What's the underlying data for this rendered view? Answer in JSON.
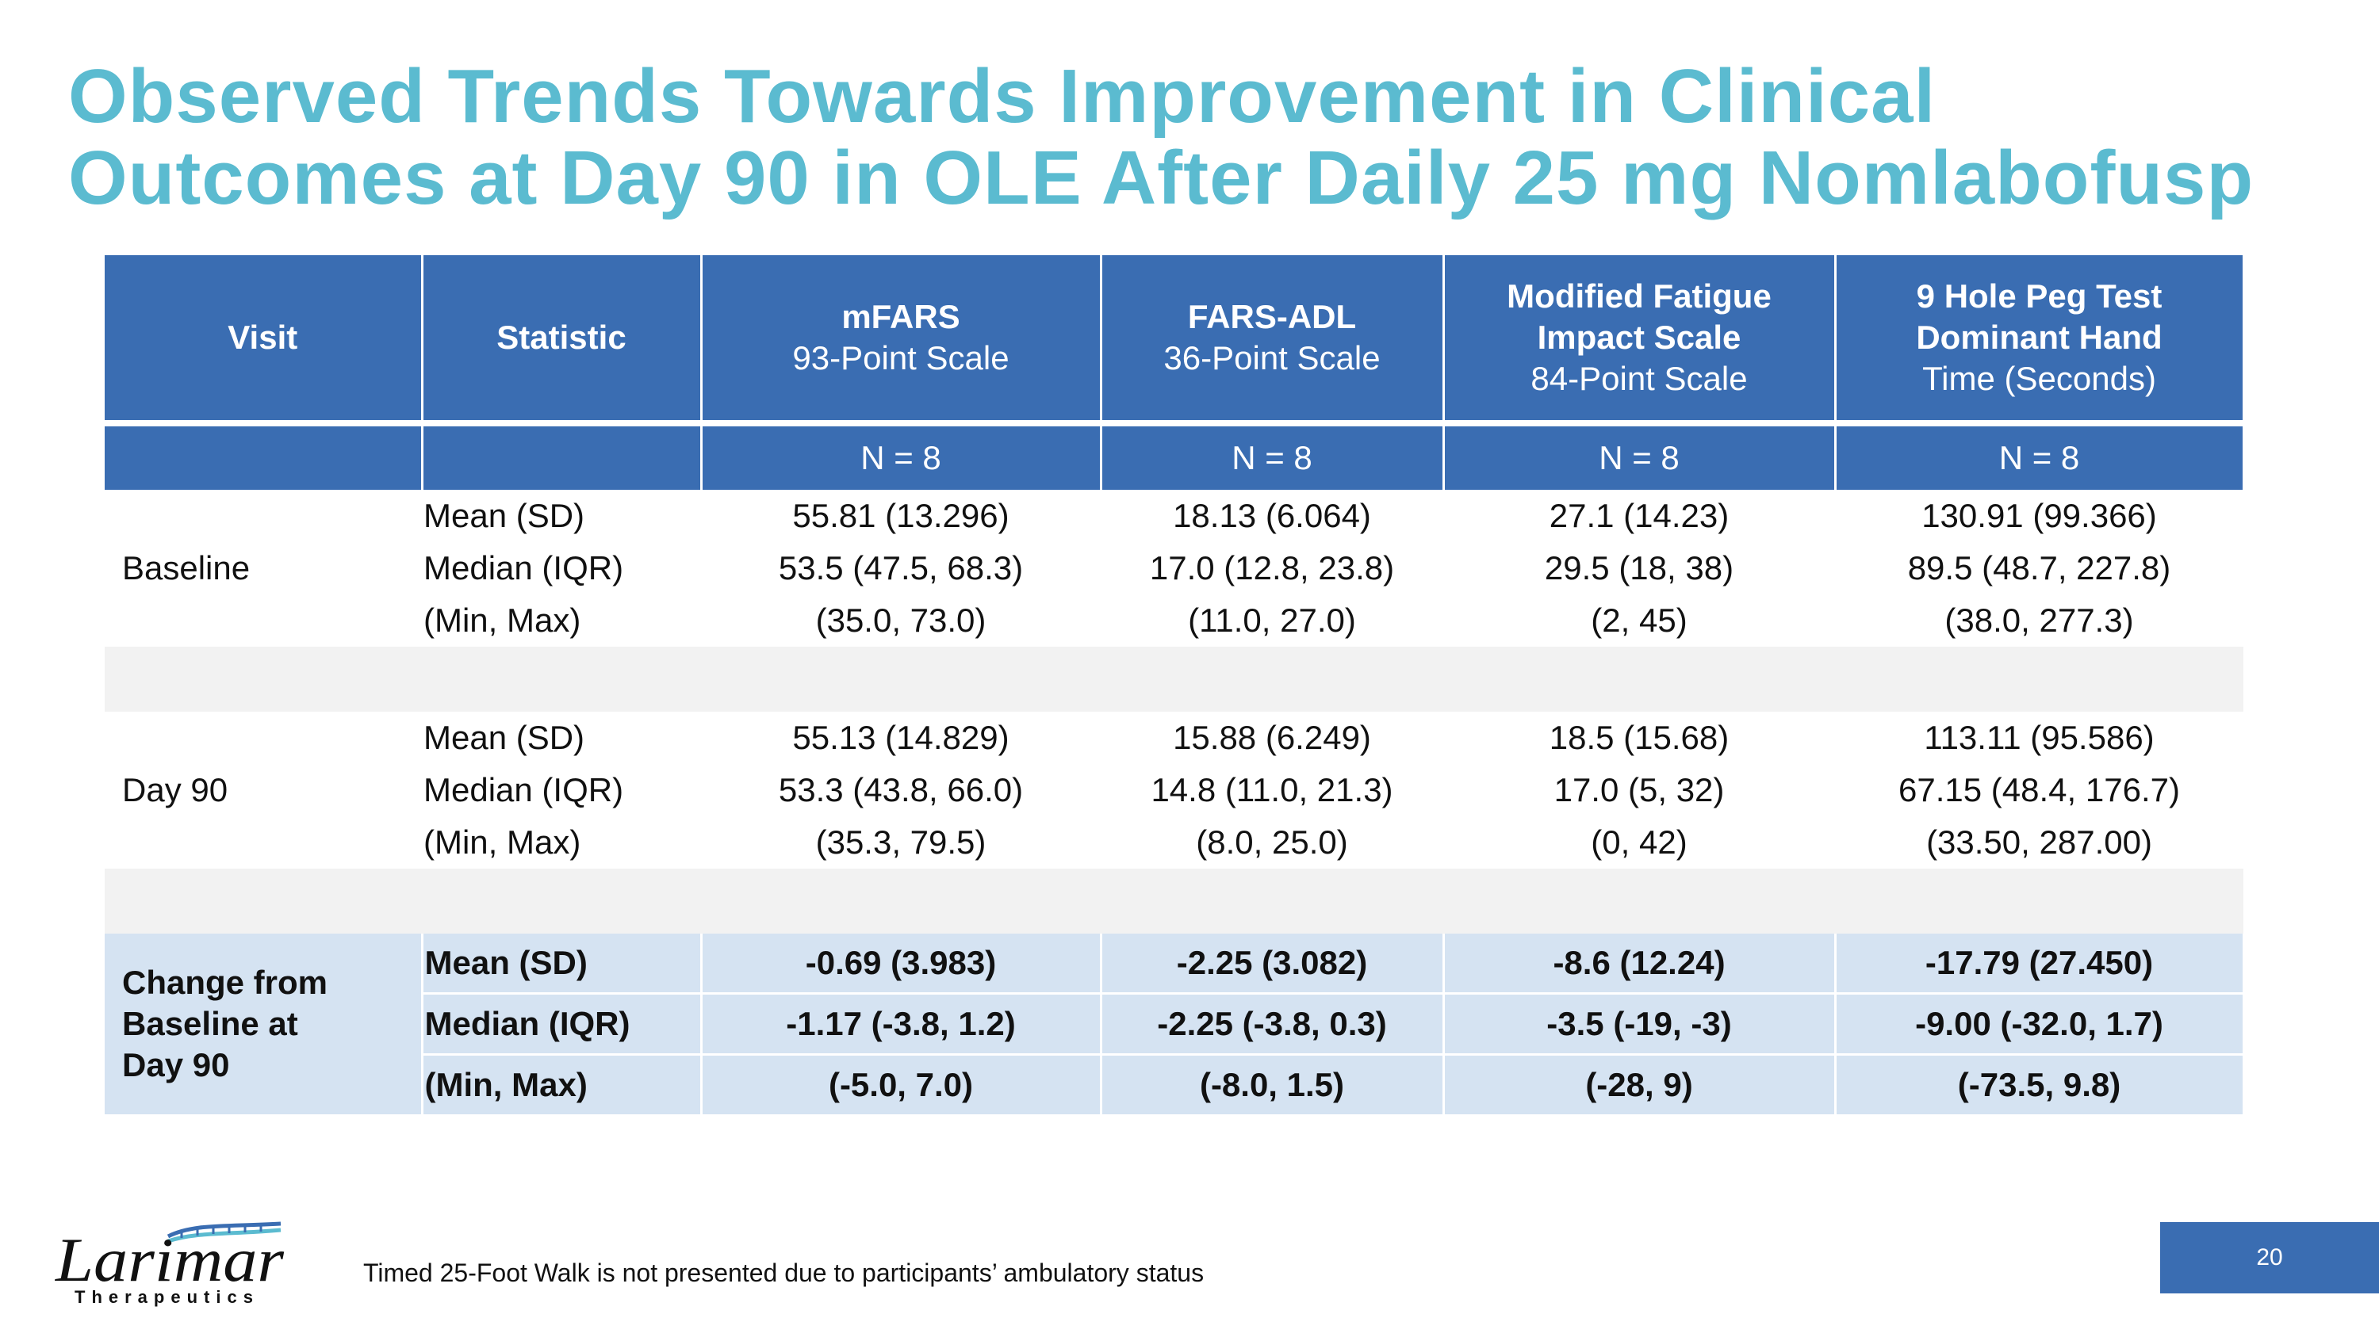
{
  "title": {
    "line1": "Observed Trends Towards Improvement in Clinical",
    "line2": "Outcomes at Day 90 in OLE After Daily 25 mg Nomlabofusp"
  },
  "table": {
    "headers": {
      "visit": "Visit",
      "statistic": "Statistic",
      "mfars": {
        "title": "mFARS",
        "sub": "93-Point Scale"
      },
      "farsadl": {
        "title": "FARS-ADL",
        "sub": "36-Point Scale"
      },
      "mfis": {
        "title1": "Modified Fatigue",
        "title2": "Impact Scale",
        "sub": "84-Point Scale"
      },
      "peg": {
        "title1": "9 Hole Peg Test",
        "title2": "Dominant Hand",
        "sub": "Time (Seconds)"
      }
    },
    "n_row": [
      "N = 8",
      "N = 8",
      "N = 8",
      "N = 8"
    ],
    "baseline": {
      "label": "Baseline",
      "rows": [
        {
          "stat": "Mean (SD)",
          "values": [
            "55.81 (13.296)",
            "18.13 (6.064)",
            "27.1 (14.23)",
            "130.91 (99.366)"
          ]
        },
        {
          "stat": "Median (IQR)",
          "values": [
            "53.5 (47.5, 68.3)",
            "17.0 (12.8, 23.8)",
            "29.5 (18, 38)",
            "89.5 (48.7, 227.8)"
          ]
        },
        {
          "stat": "(Min, Max)",
          "values": [
            "(35.0, 73.0)",
            "(11.0, 27.0)",
            "(2, 45)",
            "(38.0, 277.3)"
          ]
        }
      ]
    },
    "day90": {
      "label": "Day 90",
      "rows": [
        {
          "stat": "Mean (SD)",
          "values": [
            "55.13 (14.829)",
            "15.88 (6.249)",
            "18.5 (15.68)",
            "113.11 (95.586)"
          ]
        },
        {
          "stat": "Median (IQR)",
          "values": [
            "53.3 (43.8, 66.0)",
            "14.8 (11.0, 21.3)",
            "17.0 (5, 32)",
            "67.15 (48.4, 176.7)"
          ]
        },
        {
          "stat": "(Min, Max)",
          "values": [
            "(35.3, 79.5)",
            "(8.0, 25.0)",
            "(0, 42)",
            "(33.50, 287.00)"
          ]
        }
      ]
    },
    "change": {
      "label1": "Change from",
      "label2": "Baseline at",
      "label3": "Day 90",
      "rows": [
        {
          "stat": "Mean (SD)",
          "values": [
            "-0.69 (3.983)",
            "-2.25 (3.082)",
            "-8.6 (12.24)",
            "-17.79 (27.450)"
          ]
        },
        {
          "stat": "Median (IQR)",
          "values": [
            "-1.17 (-3.8, 1.2)",
            "-2.25 (-3.8, 0.3)",
            "-3.5 (-19, -3)",
            "-9.00 (-32.0, 1.7)"
          ]
        },
        {
          "stat": "(Min, Max)",
          "values": [
            "(-5.0, 7.0)",
            "(-8.0, 1.5)",
            "(-28, 9)",
            "(-73.5, 9.8)"
          ]
        }
      ]
    }
  },
  "footnote": "Timed 25-Foot Walk is not presented due to participants’ ambulatory status",
  "page_number": "20",
  "logo": {
    "wordmark": "Larimar",
    "tagline": "Therapeutics"
  },
  "colors": {
    "title": "#5BBBD0",
    "header": "#3A6DB2",
    "change_band": "#D5E3F2",
    "spacer": "#F2F2F2"
  }
}
